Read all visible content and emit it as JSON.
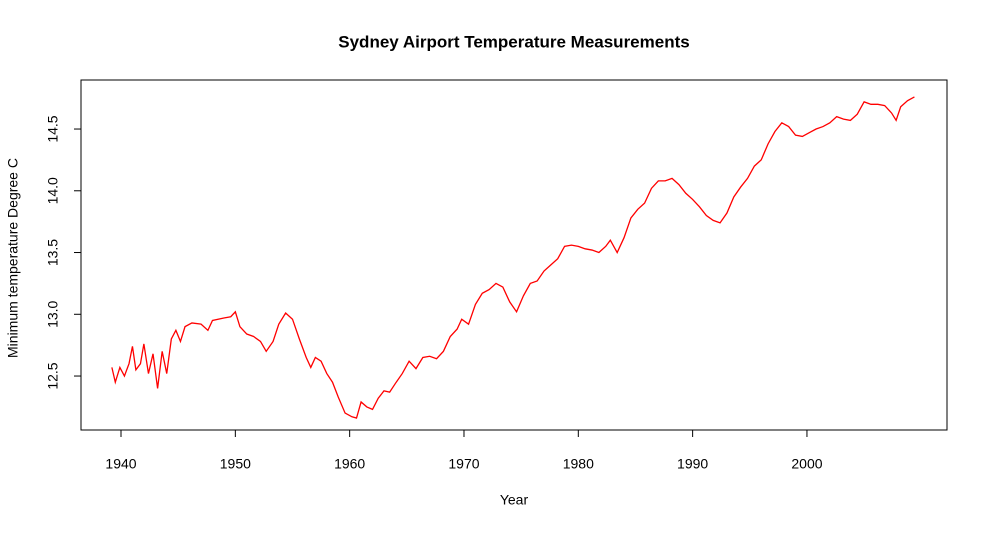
{
  "chart_data": {
    "type": "line",
    "title": "Sydney Airport Temperature Measurements",
    "x_label": "Year",
    "y_label": "Minimum temperature Degree C",
    "color": "#ff0000",
    "x": [
      1939.2,
      1939.5,
      1939.9,
      1940.3,
      1940.7,
      1941.0,
      1941.3,
      1941.7,
      1942.0,
      1942.4,
      1942.8,
      1943.2,
      1943.6,
      1944.0,
      1944.4,
      1944.8,
      1945.2,
      1945.6,
      1946.2,
      1947.0,
      1947.6,
      1948.0,
      1949.0,
      1949.6,
      1950.0,
      1950.4,
      1951.0,
      1951.6,
      1952.2,
      1952.7,
      1953.3,
      1953.8,
      1954.4,
      1955.0,
      1955.6,
      1956.2,
      1956.6,
      1957.0,
      1957.5,
      1958.0,
      1958.5,
      1959.0,
      1959.6,
      1960.2,
      1960.6,
      1961.0,
      1961.5,
      1962.0,
      1962.5,
      1963.0,
      1963.5,
      1964.0,
      1964.6,
      1965.2,
      1965.8,
      1966.4,
      1967.0,
      1967.6,
      1968.2,
      1968.8,
      1969.4,
      1969.8,
      1970.4,
      1971.0,
      1971.6,
      1972.2,
      1972.8,
      1973.4,
      1974.0,
      1974.6,
      1975.2,
      1975.8,
      1976.4,
      1977.0,
      1977.6,
      1978.2,
      1978.8,
      1979.4,
      1980.0,
      1980.6,
      1981.2,
      1981.8,
      1982.4,
      1982.8,
      1983.4,
      1984.0,
      1984.6,
      1985.2,
      1985.8,
      1986.4,
      1987.0,
      1987.6,
      1988.2,
      1988.8,
      1989.4,
      1990.0,
      1990.6,
      1991.2,
      1991.8,
      1992.4,
      1993.0,
      1993.6,
      1994.2,
      1994.8,
      1995.4,
      1996.0,
      1996.6,
      1997.2,
      1997.8,
      1998.4,
      1999.0,
      1999.6,
      2000.2,
      2000.8,
      2001.4,
      2002.0,
      2002.6,
      2003.2,
      2003.8,
      2004.4,
      2005.0,
      2005.6,
      2006.2,
      2006.8,
      2007.4,
      2007.8,
      2008.2,
      2008.8,
      2009.4
    ],
    "values": [
      12.57,
      12.45,
      12.57,
      12.5,
      12.6,
      12.74,
      12.55,
      12.6,
      12.76,
      12.52,
      12.68,
      12.4,
      12.7,
      12.52,
      12.8,
      12.87,
      12.78,
      12.9,
      12.93,
      12.92,
      12.87,
      12.95,
      12.97,
      12.98,
      13.02,
      12.9,
      12.84,
      12.82,
      12.78,
      12.7,
      12.78,
      12.92,
      13.01,
      12.96,
      12.8,
      12.65,
      12.57,
      12.65,
      12.62,
      12.52,
      12.45,
      12.33,
      12.2,
      12.17,
      12.16,
      12.29,
      12.25,
      12.23,
      12.32,
      12.38,
      12.37,
      12.44,
      12.52,
      12.62,
      12.56,
      12.65,
      12.66,
      12.64,
      12.7,
      12.82,
      12.88,
      12.96,
      12.92,
      13.08,
      13.17,
      13.2,
      13.25,
      13.22,
      13.1,
      13.02,
      13.15,
      13.25,
      13.27,
      13.35,
      13.4,
      13.45,
      13.55,
      13.56,
      13.55,
      13.53,
      13.52,
      13.5,
      13.55,
      13.6,
      13.5,
      13.62,
      13.78,
      13.85,
      13.9,
      14.02,
      14.08,
      14.08,
      14.1,
      14.05,
      13.98,
      13.93,
      13.87,
      13.8,
      13.76,
      13.74,
      13.82,
      13.95,
      14.03,
      14.1,
      14.2,
      14.25,
      14.38,
      14.48,
      14.55,
      14.52,
      14.45,
      14.44,
      14.47,
      14.5,
      14.52,
      14.55,
      14.6,
      14.58,
      14.57,
      14.62,
      14.72,
      14.7,
      14.7,
      14.69,
      14.63,
      14.57,
      14.68,
      14.73,
      14.76
    ],
    "xlim": [
      1936.5,
      2012.25
    ],
    "ylim": [
      12.063,
      14.897
    ],
    "xticks": [
      1940,
      1950,
      1960,
      1970,
      1980,
      1990,
      2000
    ],
    "yticks": [
      12.5,
      {
        "value": 13,
        "label": "13.0"
      },
      13.5,
      {
        "value": 14,
        "label": "14.0"
      },
      14.5
    ]
  }
}
